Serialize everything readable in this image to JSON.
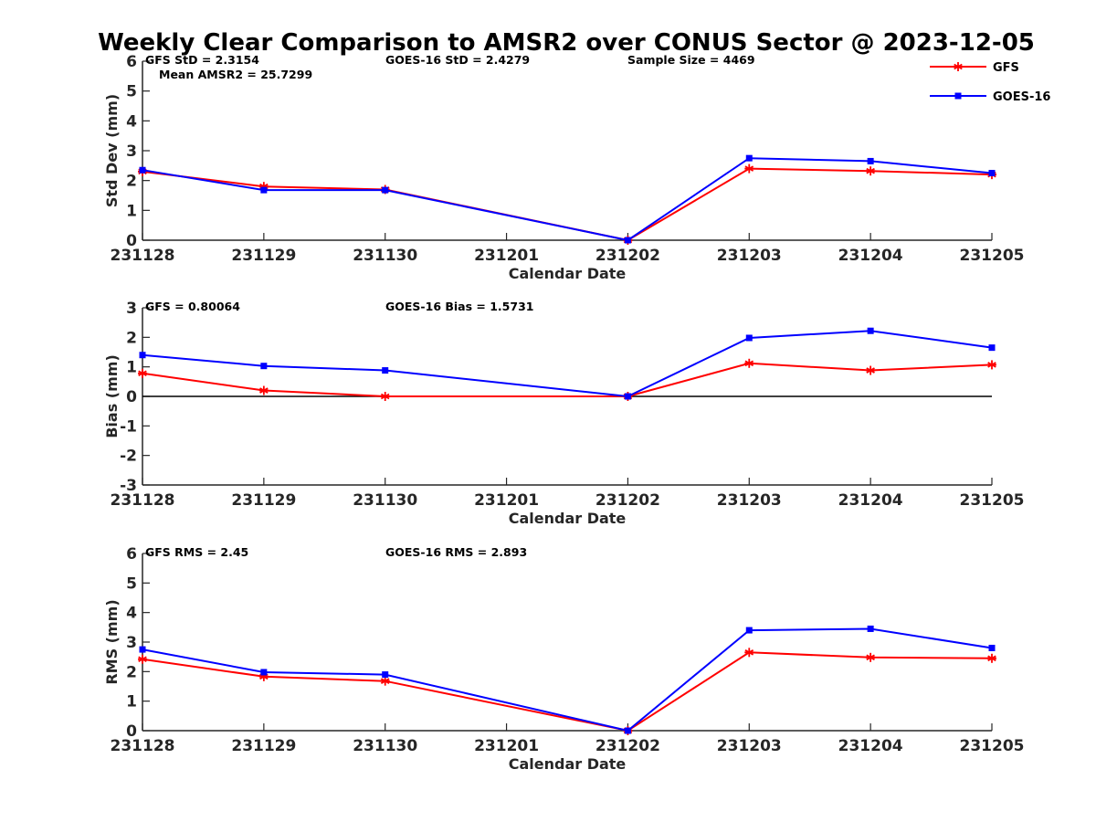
{
  "title": "Weekly Clear Comparison to AMSR2 over CONUS Sector @ 2023-12-05",
  "colors": {
    "gfs": "#ff0000",
    "goes": "#0000ff",
    "axis": "#262626",
    "zero_line": "#000000"
  },
  "legend": {
    "placement": "top-right",
    "entries": [
      {
        "name": "GFS",
        "marker": "asterisk"
      },
      {
        "name": "GOES-16",
        "marker": "square"
      }
    ]
  },
  "chart_data": [
    {
      "type": "line",
      "ylabel": "Std Dev (mm)",
      "xlabel": "Calendar Date",
      "ylim": [
        0,
        6
      ],
      "yticks": [
        "0",
        "1",
        "2",
        "3",
        "4",
        "5",
        "6"
      ],
      "categories": [
        "231128",
        "231129",
        "231130",
        "231201",
        "231202",
        "231203",
        "231204",
        "231205"
      ],
      "annotations": {
        "gfs": "GFS StD = 2.3154",
        "goes": "GOES-16 StD = 2.4279",
        "sample": "Sample Size = 4469",
        "mean": "Mean AMSR2 = 25.7299"
      },
      "series": [
        {
          "name": "GFS",
          "values": [
            2.3,
            1.8,
            1.7,
            null,
            0.0,
            2.4,
            2.32,
            2.2
          ]
        },
        {
          "name": "GOES-16",
          "values": [
            2.35,
            1.68,
            1.68,
            null,
            0.0,
            2.75,
            2.65,
            2.25
          ]
        }
      ]
    },
    {
      "type": "line",
      "ylabel": "Bias (mm)",
      "xlabel": "Calendar Date",
      "ylim": [
        -3,
        3
      ],
      "yticks": [
        "-3",
        "-2",
        "-1",
        "0",
        "1",
        "2",
        "3"
      ],
      "zero_line": true,
      "categories": [
        "231128",
        "231129",
        "231130",
        "231201",
        "231202",
        "231203",
        "231204",
        "231205"
      ],
      "annotations": {
        "gfs": "GFS = 0.80064",
        "goes": "GOES-16 Bias  = 1.5731"
      },
      "series": [
        {
          "name": "GFS",
          "values": [
            0.78,
            0.2,
            0.0,
            null,
            0.0,
            1.12,
            0.88,
            1.07
          ]
        },
        {
          "name": "GOES-16",
          "values": [
            1.4,
            1.03,
            0.88,
            null,
            0.0,
            1.98,
            2.22,
            1.65
          ]
        }
      ]
    },
    {
      "type": "line",
      "ylabel": "RMS (mm)",
      "xlabel": "Calendar Date",
      "ylim": [
        0,
        6
      ],
      "yticks": [
        "0",
        "1",
        "2",
        "3",
        "4",
        "5",
        "6"
      ],
      "categories": [
        "231128",
        "231129",
        "231130",
        "231201",
        "231202",
        "231203",
        "231204",
        "231205"
      ],
      "annotations": {
        "gfs": "GFS RMS = 2.45",
        "goes": "GOES-16 RMS = 2.893"
      },
      "series": [
        {
          "name": "GFS",
          "values": [
            2.42,
            1.83,
            1.68,
            null,
            0.0,
            2.65,
            2.48,
            2.45
          ]
        },
        {
          "name": "GOES-16",
          "values": [
            2.75,
            1.98,
            1.9,
            null,
            0.0,
            3.4,
            3.45,
            2.8
          ]
        }
      ]
    }
  ]
}
